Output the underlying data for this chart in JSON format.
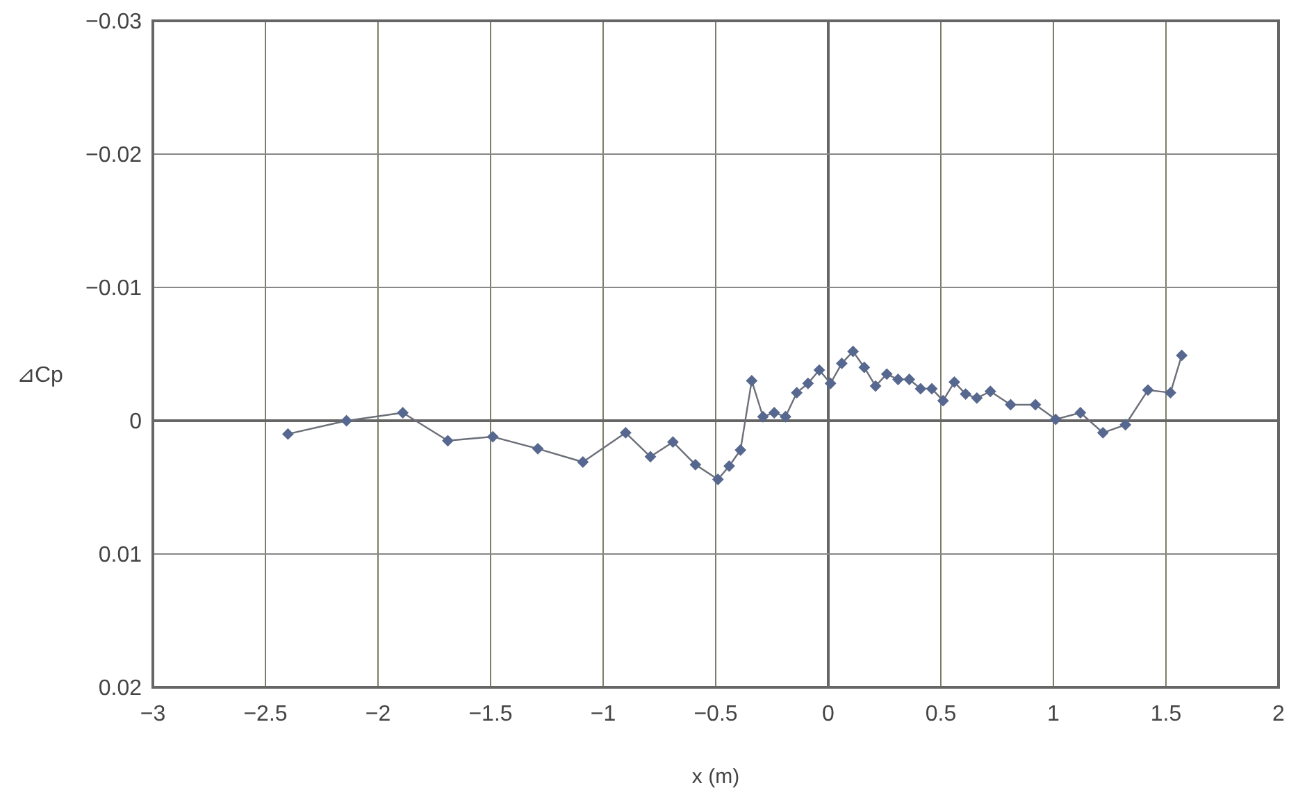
{
  "chart_data": {
    "type": "line",
    "xlabel": "x (m)",
    "ylabel": "⊿Cp",
    "x": [
      -2.4,
      -2.14,
      -1.89,
      -1.69,
      -1.49,
      -1.29,
      -1.09,
      -0.9,
      -0.79,
      -0.69,
      -0.59,
      -0.49,
      -0.44,
      -0.39,
      -0.34,
      -0.29,
      -0.24,
      -0.19,
      -0.14,
      -0.09,
      -0.04,
      0.01,
      0.06,
      0.11,
      0.16,
      0.21,
      0.26,
      0.31,
      0.36,
      0.41,
      0.46,
      0.51,
      0.56,
      0.61,
      0.66,
      0.72,
      0.81,
      0.92,
      1.01,
      1.12,
      1.22,
      1.32,
      1.42,
      1.52,
      1.57
    ],
    "series": [
      {
        "color": "#56688f",
        "values": [
          0.001,
          0,
          -0.0006,
          0.0015,
          0.0012,
          0.0021,
          0.0031,
          0.0009,
          0.0027,
          0.0016,
          0.0033,
          0.0044,
          0.0034,
          0.0022,
          -0.003,
          -0.0003,
          -0.0006,
          -0.0003,
          -0.0021,
          -0.0028,
          -0.0038,
          -0.0028,
          -0.0043,
          -0.0052,
          -0.004,
          -0.0026,
          -0.0035,
          -0.0031,
          -0.0031,
          -0.0024,
          -0.0024,
          -0.0015,
          -0.0029,
          -0.002,
          -0.0017,
          -0.0022,
          -0.0012,
          -0.0012,
          -0.0001,
          -0.0006,
          0.0009,
          0.0003,
          -0.0023,
          -0.0021,
          -0.0049
        ]
      }
    ],
    "xlim": [
      -3,
      2
    ],
    "xticks": [
      -3,
      -2.5,
      -2,
      -1.5,
      -1,
      -0.5,
      0,
      0.5,
      1,
      1.5,
      2
    ],
    "ylim": [
      0.02,
      -0.03
    ],
    "yticks": [
      -0.03,
      -0.02,
      -0.01,
      0,
      0.01,
      0.02
    ],
    "grid": true,
    "marker": "diamond",
    "line_style": "solid"
  }
}
